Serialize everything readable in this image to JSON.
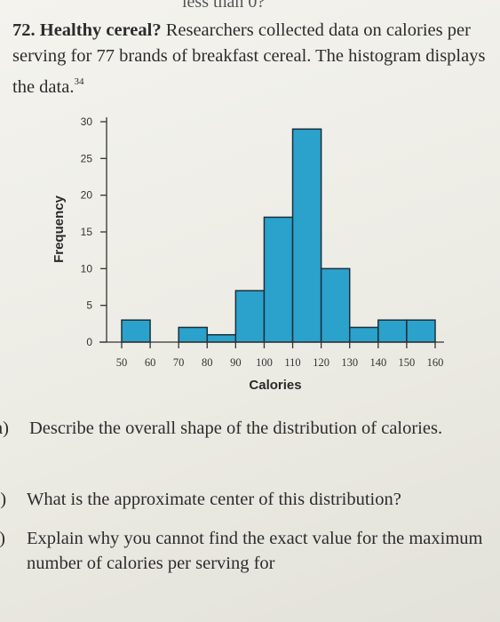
{
  "top_fragment": "less than 0?",
  "problem": {
    "number": "72.",
    "title": "Healthy cereal?",
    "text": "Researchers collected data on calories per serving for 77 brands of breakfast cereal. The histogram displays the data.",
    "footnote": "34"
  },
  "chart_data": {
    "type": "bar",
    "xlabel": "Calories",
    "ylabel": "Frequency",
    "x_ticks": [
      50,
      60,
      70,
      80,
      90,
      100,
      110,
      120,
      130,
      140,
      150,
      160
    ],
    "y_ticks": [
      0,
      5,
      10,
      15,
      20,
      25,
      30
    ],
    "ylim": [
      0,
      30
    ],
    "xlim": [
      50,
      160
    ],
    "bins": [
      {
        "start": 50,
        "end": 60,
        "count": 3
      },
      {
        "start": 60,
        "end": 70,
        "count": 0
      },
      {
        "start": 70,
        "end": 80,
        "count": 2
      },
      {
        "start": 80,
        "end": 90,
        "count": 1
      },
      {
        "start": 90,
        "end": 100,
        "count": 7
      },
      {
        "start": 100,
        "end": 110,
        "count": 17
      },
      {
        "start": 110,
        "end": 120,
        "count": 29
      },
      {
        "start": 120,
        "end": 130,
        "count": 10
      },
      {
        "start": 130,
        "end": 140,
        "count": 2
      },
      {
        "start": 140,
        "end": 150,
        "count": 3
      },
      {
        "start": 150,
        "end": 160,
        "count": 3
      }
    ],
    "bar_color": "#2aa2cc",
    "grid": false
  },
  "questions": [
    {
      "label": "a)",
      "text": "Describe the overall shape of the distribution of calories."
    },
    {
      "label": "b)",
      "text": "What is the approximate center of this distribution?"
    },
    {
      "label": "c)",
      "text": "Explain why you cannot find the exact value for the maximum number of calories per serving for"
    }
  ]
}
